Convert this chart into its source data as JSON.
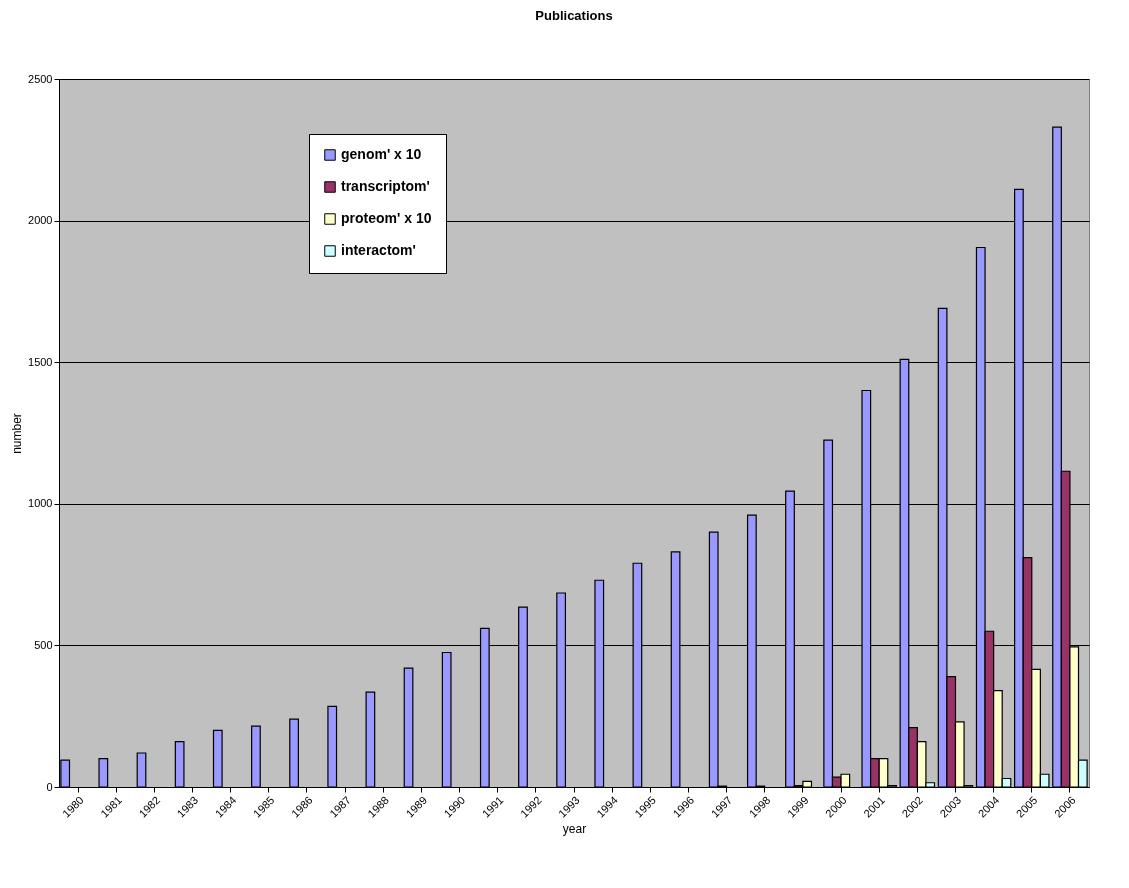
{
  "chart_data": {
    "type": "bar",
    "title": "Publications",
    "xlabel": "year",
    "ylabel": "number",
    "categories": [
      "1980",
      "1981",
      "1982",
      "1983",
      "1984",
      "1985",
      "1986",
      "1987",
      "1988",
      "1989",
      "1990",
      "1991",
      "1992",
      "1993",
      "1994",
      "1995",
      "1996",
      "1997",
      "1998",
      "1999",
      "2000",
      "2001",
      "2002",
      "2003",
      "2004",
      "2005",
      "2006"
    ],
    "series": [
      {
        "name": "genom' x 10",
        "color": "#9999ff",
        "values": [
          95,
          100,
          120,
          160,
          200,
          215,
          240,
          285,
          335,
          420,
          475,
          560,
          635,
          685,
          730,
          790,
          830,
          900,
          960,
          1045,
          1225,
          1400,
          1510,
          1690,
          1905,
          2110,
          2330
        ]
      },
      {
        "name": "transcriptom'",
        "color": "#993366",
        "values": [
          null,
          null,
          null,
          null,
          null,
          null,
          null,
          null,
          null,
          null,
          null,
          null,
          null,
          null,
          null,
          null,
          null,
          3,
          3,
          5,
          35,
          100,
          210,
          390,
          550,
          810,
          1115
        ]
      },
      {
        "name": "proteom' x 10",
        "color": "#ffffcc",
        "values": [
          null,
          null,
          null,
          null,
          null,
          null,
          null,
          null,
          null,
          null,
          null,
          null,
          null,
          null,
          null,
          null,
          null,
          null,
          null,
          20,
          45,
          100,
          160,
          230,
          340,
          415,
          495
        ]
      },
      {
        "name": "interactom'",
        "color": "#ccffff",
        "values": [
          null,
          null,
          null,
          null,
          null,
          null,
          null,
          null,
          null,
          null,
          null,
          null,
          null,
          null,
          null,
          null,
          null,
          null,
          null,
          null,
          null,
          5,
          15,
          5,
          30,
          45,
          95
        ]
      }
    ],
    "ylim": [
      0,
      2500
    ],
    "yticks": [
      0,
      500,
      1000,
      1500,
      2000,
      2500
    ],
    "grid": "y",
    "legend": "top left"
  }
}
